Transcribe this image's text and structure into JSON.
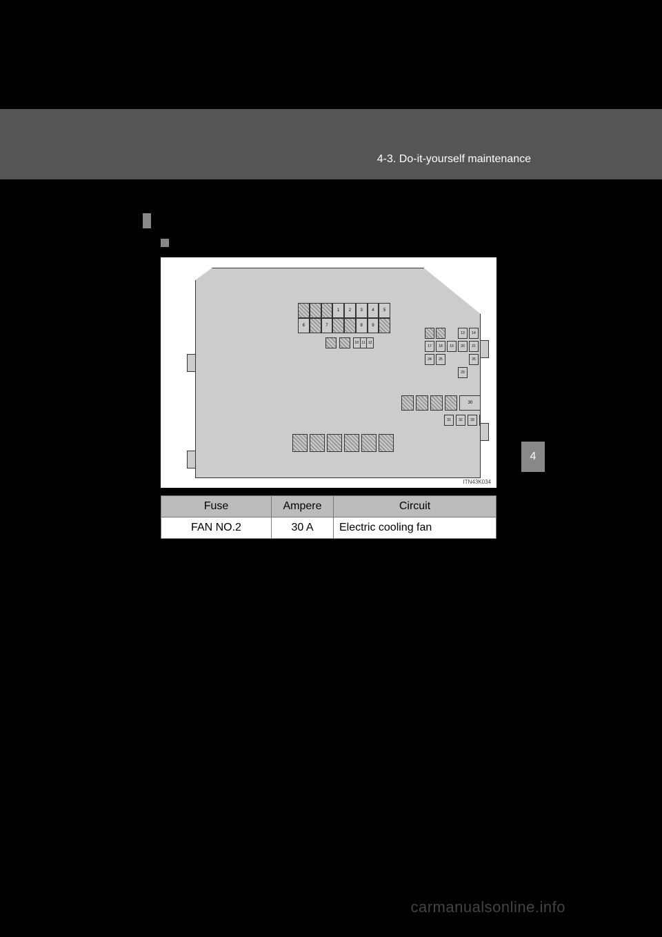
{
  "header": {
    "breadcrumb": "4-3. Do-it-yourself maintenance"
  },
  "side_tab": "4",
  "diagram": {
    "image_id": "ITN43K034",
    "grid1_row1": [
      "",
      "",
      "",
      "1",
      "2",
      "3",
      "4",
      "5"
    ],
    "grid1_row2": [
      "6",
      "",
      "7",
      "",
      "",
      "8",
      "9",
      ""
    ],
    "small_multi": [
      "10",
      "11",
      "12"
    ],
    "cluster_rows": [
      [
        "",
        "",
        "",
        "13",
        "14",
        "15",
        "16"
      ],
      [
        "17",
        "18",
        "19",
        "20",
        "21",
        "22",
        "23"
      ],
      [
        "24",
        "25",
        "",
        "",
        "26",
        "27",
        "28"
      ],
      [
        "",
        "",
        "",
        "29",
        "",
        "",
        ""
      ]
    ],
    "bigrow_label": "30",
    "row31": [
      "31",
      "32",
      "33",
      "34"
    ]
  },
  "table": {
    "headers": {
      "fuse": "Fuse",
      "ampere": "Ampere",
      "circuit": "Circuit"
    },
    "row": {
      "fuse": "FAN NO.2",
      "ampere": "30 A",
      "circuit": "Electric cooling fan"
    }
  },
  "watermark": "carmanualsonline.info",
  "colors": {
    "page_bg": "#000000",
    "band_bg": "#555555",
    "diagram_bg": "#ffffff",
    "fusebox_fill": "#cccccc",
    "table_header_bg": "#bbbbbb"
  }
}
